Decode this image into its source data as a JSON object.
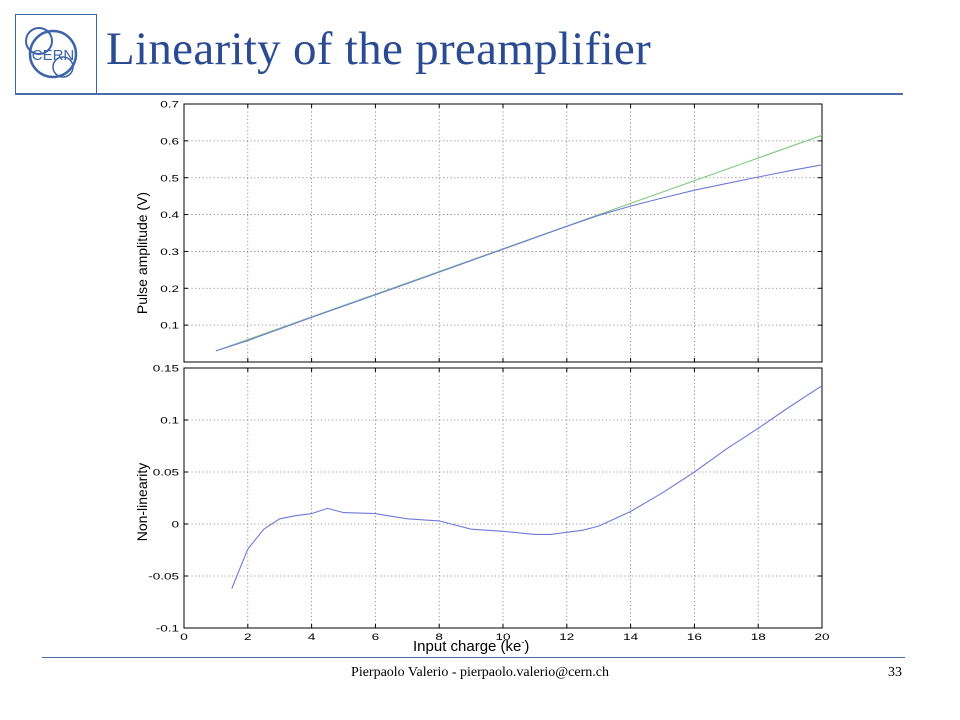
{
  "slide": {
    "title": "Linearity of the preamplifier",
    "footer": "Pierpaolo Valerio - pierpaolo.valerio@cern.ch",
    "page_number": "33",
    "logo_text": "CERN"
  },
  "colors": {
    "title": "#2a4a92",
    "rule": "#4d6ba8",
    "series_measured": "#7079d8",
    "series_ideal": "#7fc87f",
    "grid": "#777777"
  },
  "chart_data": [
    {
      "type": "line",
      "ylabel": "Pulse amplitude (V)",
      "xlim": [
        0,
        20
      ],
      "ylim": [
        0,
        0.7
      ],
      "xticks": [
        0,
        2,
        4,
        6,
        8,
        10,
        12,
        14,
        16,
        18,
        20
      ],
      "yticks": [
        0.1,
        0.2,
        0.3,
        0.4,
        0.5,
        0.6,
        0.7
      ],
      "grid": true,
      "series": [
        {
          "x": [
            1,
            20
          ],
          "y": [
            0.03,
            0.615
          ]
        },
        {
          "x": [
            1,
            2,
            4,
            6,
            8,
            10,
            12,
            13,
            14,
            15,
            16,
            17,
            18,
            19,
            20
          ],
          "y": [
            0.03,
            0.058,
            0.121,
            0.182,
            0.244,
            0.306,
            0.368,
            0.398,
            0.423,
            0.445,
            0.466,
            0.484,
            0.502,
            0.519,
            0.535
          ]
        }
      ]
    },
    {
      "type": "line",
      "ylabel": "Non-linearity",
      "xlabel": "Input charge (ke-)",
      "xlim": [
        0,
        20
      ],
      "ylim": [
        -0.1,
        0.15
      ],
      "xticks": [
        0,
        2,
        4,
        6,
        8,
        10,
        12,
        14,
        16,
        18,
        20
      ],
      "yticks": [
        -0.1,
        -0.05,
        0,
        0.05,
        0.1,
        0.15
      ],
      "grid": true,
      "series": [
        {
          "x": [
            1.5,
            2,
            2.5,
            3,
            3.5,
            4,
            4.5,
            5,
            6,
            7,
            8,
            9,
            10,
            11,
            11.5,
            12,
            12.5,
            13,
            14,
            15,
            16,
            17,
            18,
            19,
            20
          ],
          "y": [
            -0.062,
            -0.024,
            -0.005,
            0.005,
            0.008,
            0.01,
            0.015,
            0.011,
            0.01,
            0.005,
            0.003,
            -0.005,
            -0.007,
            -0.01,
            -0.01,
            -0.008,
            -0.006,
            -0.002,
            0.012,
            0.03,
            0.05,
            0.072,
            0.092,
            0.113,
            0.133
          ]
        }
      ]
    }
  ]
}
